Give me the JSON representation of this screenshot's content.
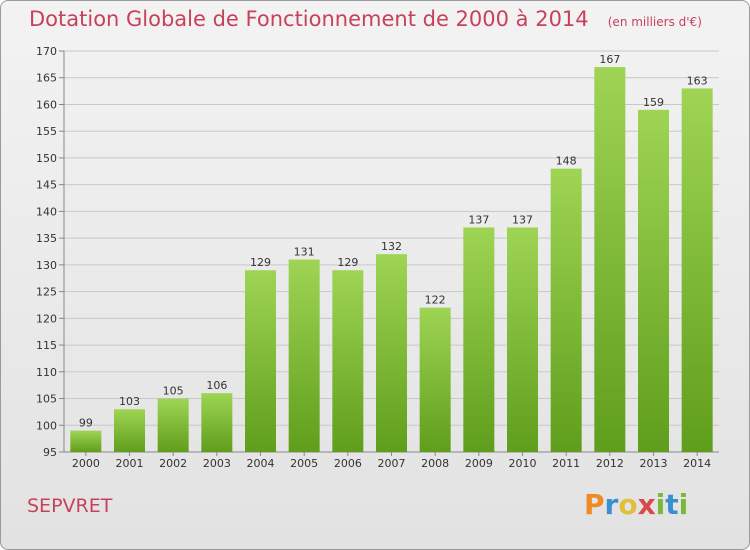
{
  "chart_data": {
    "type": "bar",
    "title": "Dotation Globale de Fonctionnement de 2000 à 2014",
    "subtitle": "(en milliers d'€)",
    "categories": [
      "2000",
      "2001",
      "2002",
      "2003",
      "2004",
      "2005",
      "2006",
      "2007",
      "2008",
      "2009",
      "2010",
      "2011",
      "2012",
      "2013",
      "2014"
    ],
    "values": [
      99,
      103,
      105,
      106,
      129,
      131,
      129,
      132,
      122,
      137,
      137,
      148,
      167,
      159,
      163
    ],
    "ylim": [
      95,
      170
    ],
    "yticks": [
      95,
      100,
      105,
      110,
      115,
      120,
      125,
      130,
      135,
      140,
      145,
      150,
      155,
      160,
      165,
      170
    ],
    "grid": true,
    "bar_color": "#7cb82f"
  },
  "footer": {
    "commune": "SEPVRET",
    "logo": "Proxiti"
  }
}
